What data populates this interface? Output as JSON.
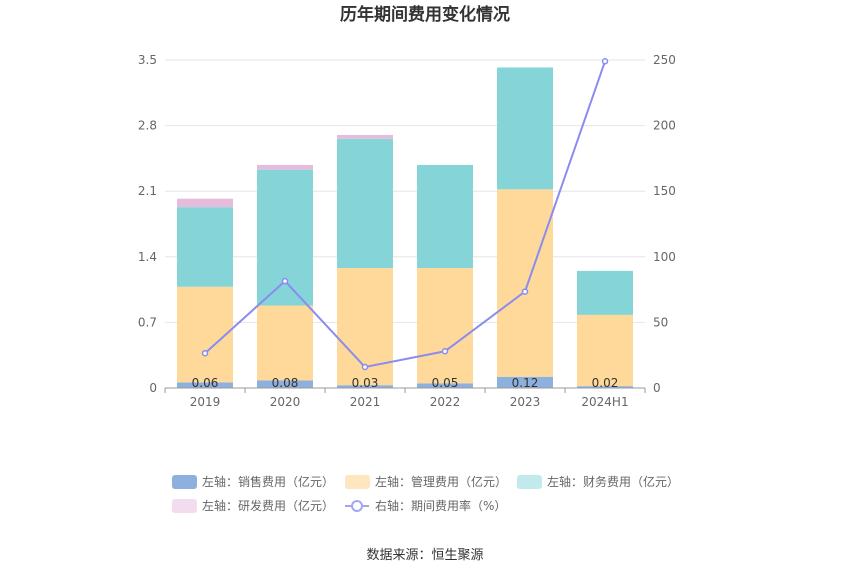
{
  "chart_data": {
    "type": "bar",
    "title": "历年期间费用变化情况",
    "categories": [
      "2019",
      "2020",
      "2021",
      "2022",
      "2023",
      "2024H1"
    ],
    "left_axis": {
      "ticks": [
        "0",
        "0.7",
        "1.4",
        "2.1",
        "2.8",
        "3.5"
      ],
      "ylim": [
        0,
        3.5
      ]
    },
    "right_axis": {
      "ticks": [
        "0",
        "50",
        "100",
        "150",
        "200",
        "250"
      ],
      "ylim": [
        0,
        250
      ]
    },
    "series": [
      {
        "name": "左轴：销售费用（亿元）",
        "type": "bar",
        "axis": "left",
        "color": "#8eb0de",
        "values": [
          0.06,
          0.08,
          0.03,
          0.05,
          0.12,
          0.02
        ],
        "labels": [
          "0.06",
          "0.08",
          "0.03",
          "0.05",
          "0.12",
          "0.02"
        ]
      },
      {
        "name": "左轴：管理费用（亿元）",
        "type": "bar",
        "axis": "left",
        "color": "#ffd99a",
        "values": [
          1.02,
          0.8,
          1.25,
          1.23,
          2.0,
          0.76
        ]
      },
      {
        "name": "左轴：财务费用（亿元）",
        "type": "bar",
        "axis": "left",
        "color": "#85d5d8",
        "values": [
          0.85,
          1.45,
          1.38,
          1.1,
          1.3,
          0.47
        ]
      },
      {
        "name": "左轴：研发费用（亿元）",
        "type": "bar",
        "axis": "left",
        "color": "#e6bcdc",
        "values": [
          0.09,
          0.05,
          0.04,
          0.0,
          0.0,
          0.0
        ]
      },
      {
        "name": "右轴：期间费用率（%）",
        "type": "line",
        "axis": "right",
        "color": "#8a8cf0",
        "values": [
          26.5,
          81.5,
          16.0,
          28.0,
          73.5,
          249.0
        ]
      }
    ],
    "legend": {
      "position": "bottom",
      "colors": [
        "#8eb0de",
        "#ffe6be",
        "#c2e9eb",
        "#f3dcee",
        "#a4a6f3"
      ]
    },
    "grid": true
  },
  "source": "数据来源：恒生聚源"
}
